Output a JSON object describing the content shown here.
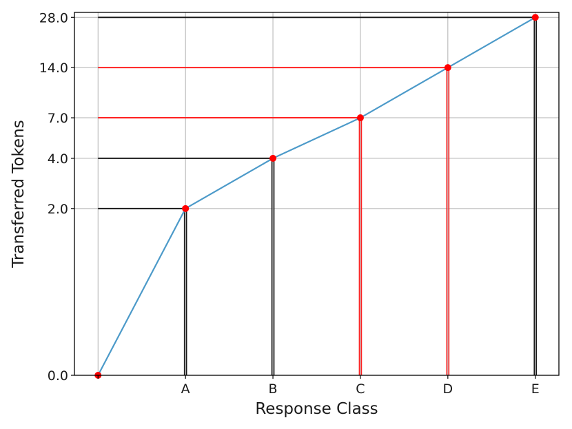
{
  "chart_data": {
    "type": "line",
    "xlabel": "Response Class",
    "ylabel": "Transferred Tokens",
    "categories": [
      "",
      "A",
      "B",
      "C",
      "D",
      "E"
    ],
    "x": [
      0,
      1,
      2,
      3,
      4,
      5
    ],
    "values": [
      0,
      2,
      4,
      7,
      14,
      28
    ],
    "ylim": [
      0,
      30
    ],
    "xlim": [
      -0.27,
      5.27
    ],
    "y_ticks": [
      0,
      2,
      4,
      7,
      14,
      28
    ],
    "y_tick_labels": [
      "0.0",
      "2.0",
      "4.0",
      "7.0",
      "14.0",
      "28.0"
    ],
    "y_scale": "symlog (linear near 0)",
    "grid": true,
    "line_color": "#4c9ac9",
    "marker_color": "#ff0000",
    "guide_lines": [
      {
        "x": 1,
        "y": 2,
        "color": "#1a1a1a"
      },
      {
        "x": 2,
        "y": 4,
        "color": "#1a1a1a"
      },
      {
        "x": 3,
        "y": 7,
        "color": "#ff2020"
      },
      {
        "x": 4,
        "y": 14,
        "color": "#ff2020"
      },
      {
        "x": 5,
        "y": 28,
        "color": "#1a1a1a"
      }
    ]
  }
}
